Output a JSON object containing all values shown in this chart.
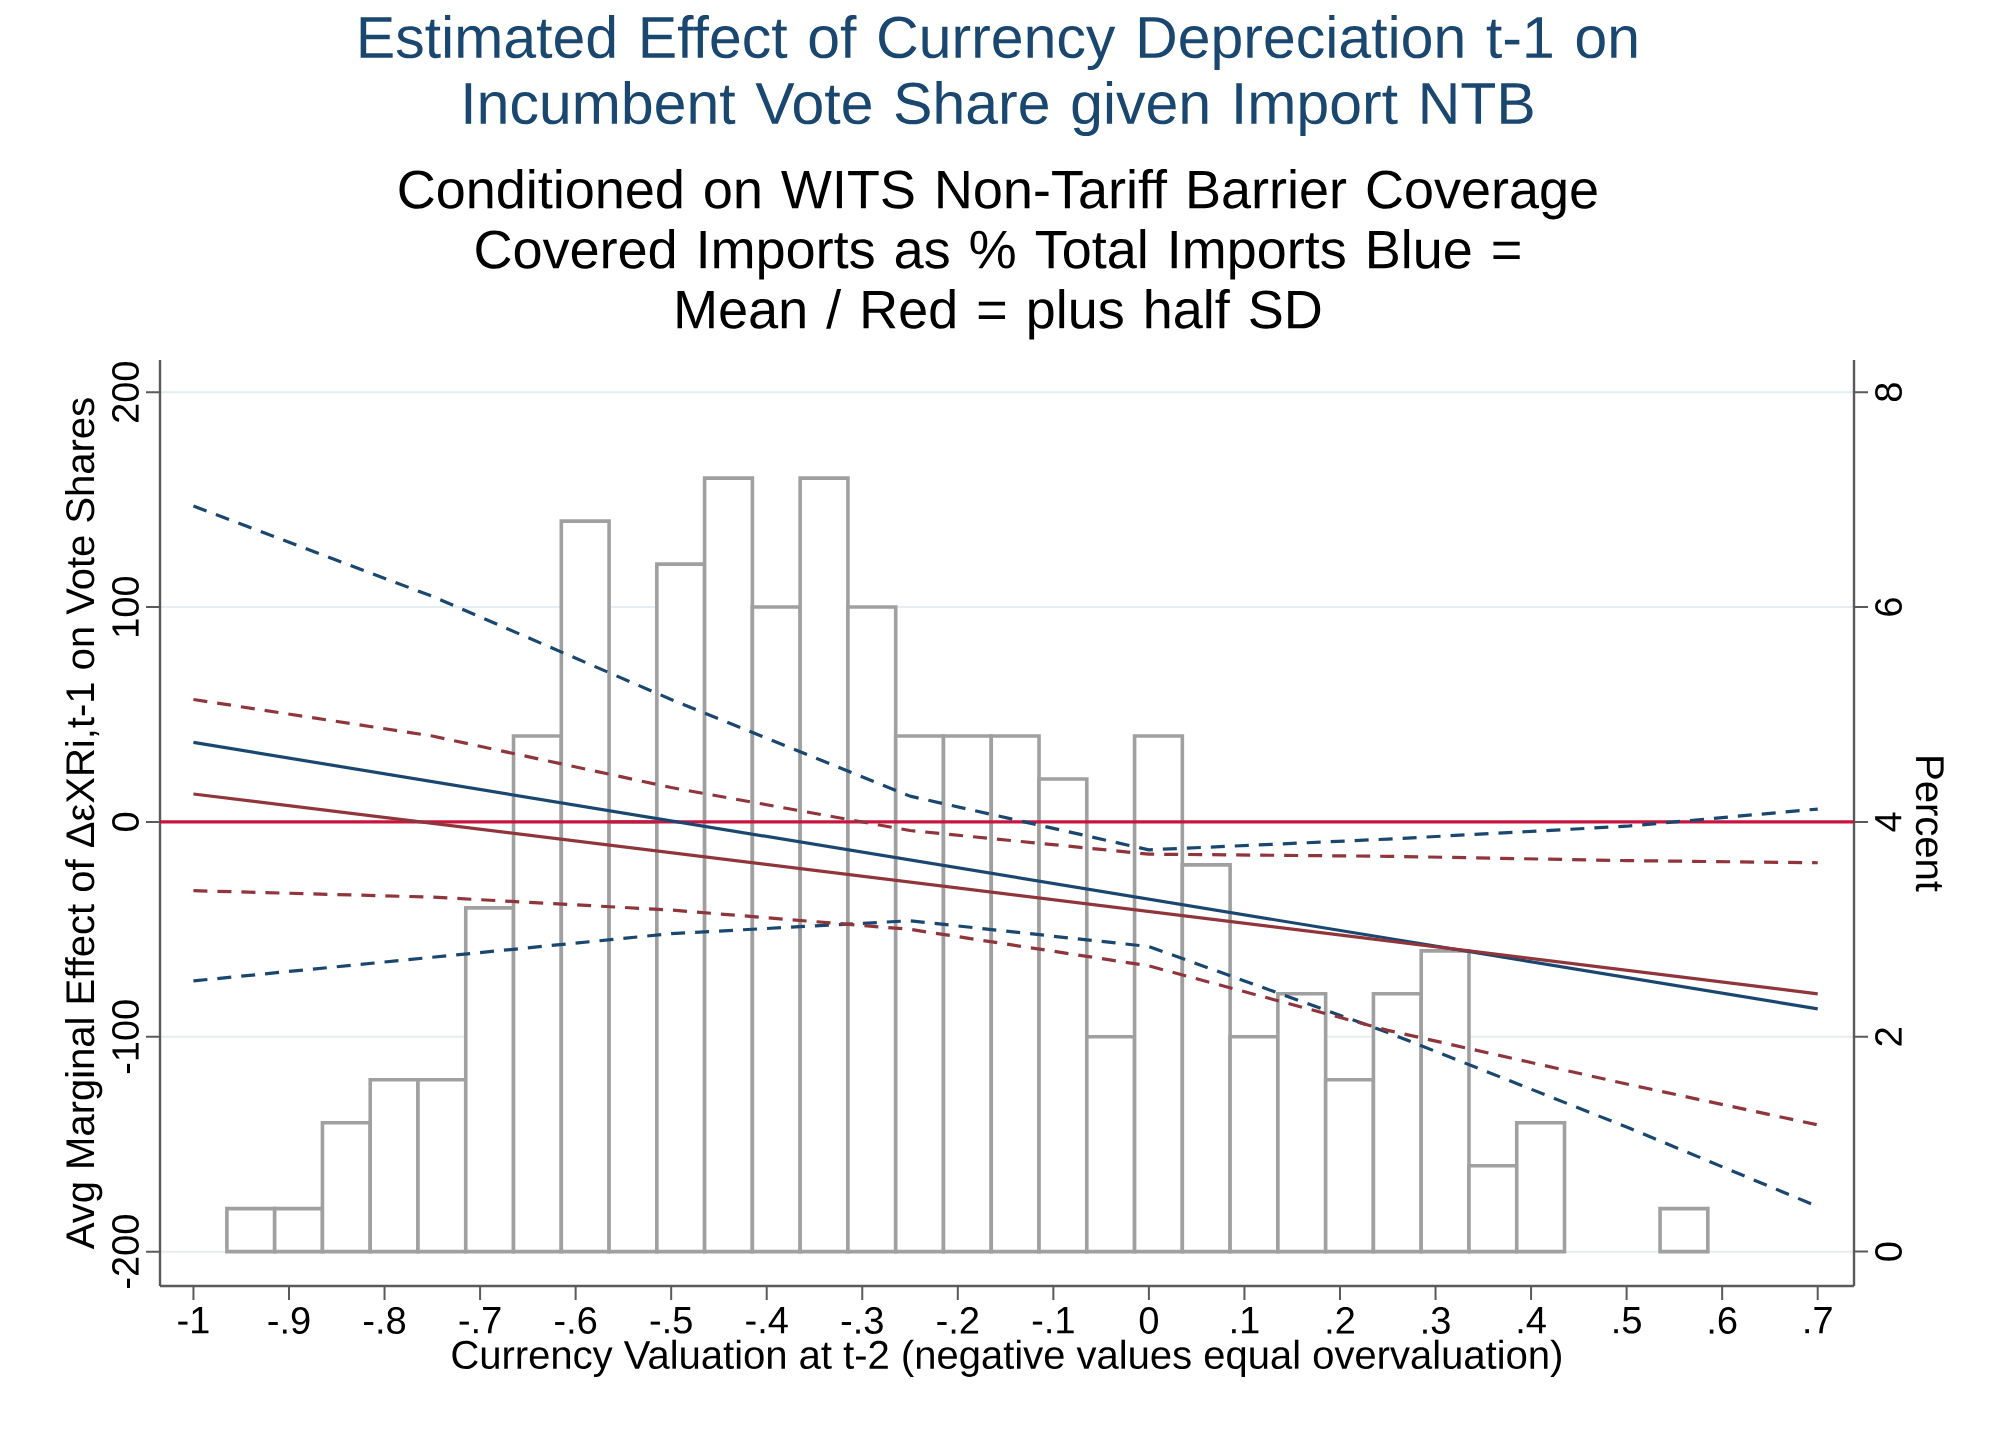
{
  "chart_data": {
    "type": "line",
    "title": "Estimated Effect of Currency Depreciation t-1 on Incumbent Vote Share given Import NTB",
    "subtitle": "Conditioned on WITS Non-Tariff Barrier Coverage Covered Imports as % Total Imports Blue = Mean / Red = plus half SD",
    "xlabel": "Currency Valuation at t-2 (negative values equal overvaluation)",
    "ylabel": "Avg Marginal Effect of ΔεXRi,t-1 on Vote Shares",
    "y2label": "Percent",
    "xlim": [
      -1.035,
      0.738
    ],
    "xticks": [
      -1,
      {
        "value": -0.9,
        "label": "-.9"
      },
      {
        "value": -0.8,
        "label": "-.8"
      },
      {
        "value": -0.7,
        "label": "-.7"
      },
      {
        "value": -0.6,
        "label": "-.6"
      },
      {
        "value": -0.5,
        "label": "-.5"
      },
      {
        "value": -0.4,
        "label": "-.4"
      },
      {
        "value": -0.3,
        "label": "-.3"
      },
      {
        "value": -0.2,
        "label": "-.2"
      },
      {
        "value": -0.1,
        "label": "-.1"
      },
      0,
      {
        "value": 0.1,
        "label": ".1"
      },
      {
        "value": 0.2,
        "label": ".2"
      },
      {
        "value": 0.3,
        "label": ".3"
      },
      {
        "value": 0.4,
        "label": ".4"
      },
      {
        "value": 0.5,
        "label": ".5"
      },
      {
        "value": 0.6,
        "label": ".6"
      },
      {
        "value": 0.7,
        "label": ".7"
      }
    ],
    "ylim": [
      -216,
      215
    ],
    "yticks": [
      -200,
      -100,
      0,
      100,
      200
    ],
    "y2lim": [
      -0.32,
      8.3
    ],
    "y2ticks": [
      0,
      2,
      4,
      6,
      8
    ],
    "grid": "y",
    "ref_lines": [
      {
        "axis": "y",
        "value": 0,
        "color": "#c8153f"
      }
    ],
    "series": [
      {
        "type": "histogram",
        "axis": "y2",
        "color": "#a0a0a0",
        "bins": [
          -0.965,
          -0.915,
          -0.865,
          -0.815,
          -0.765,
          -0.715,
          -0.665,
          -0.615,
          -0.565,
          -0.515,
          -0.465,
          -0.415,
          -0.365,
          -0.315,
          -0.265,
          -0.215,
          -0.165,
          -0.115,
          -0.065,
          -0.015,
          0.035,
          0.085,
          0.135,
          0.185,
          0.235,
          0.285,
          0.335,
          0.385,
          0.435,
          0.485,
          0.535,
          0.585
        ],
        "values": [
          0.4,
          0.4,
          1.2,
          1.6,
          1.6,
          3.2,
          4.8,
          6.8,
          4.0,
          6.4,
          7.2,
          6.0,
          7.2,
          6.0,
          4.8,
          4.8,
          4.8,
          4.4,
          2.0,
          4.8,
          3.6,
          2.0,
          2.4,
          1.6,
          2.4,
          2.8,
          0.8,
          1.2,
          0,
          0,
          0.4
        ]
      },
      {
        "color": "#1a476f",
        "line_style": "dashed",
        "x": [
          -1,
          -0.75,
          -0.5,
          -0.25,
          0,
          0.25,
          0.5,
          0.7
        ],
        "values": [
          147,
          105,
          57,
          12,
          -13,
          -8,
          -2,
          6
        ]
      },
      {
        "color": "#1a476f",
        "line_style": "dashed",
        "x": [
          -1,
          -0.75,
          -0.5,
          -0.25,
          0,
          0.25,
          0.5,
          0.7
        ],
        "values": [
          -74,
          -63,
          -52,
          -46,
          -58,
          -98,
          -142,
          -179
        ]
      },
      {
        "color": "#90353b",
        "line_style": "dashed",
        "x": [
          -1,
          -0.75,
          -0.5,
          -0.25,
          0,
          0.25,
          0.5,
          0.7
        ],
        "values": [
          57,
          40,
          16,
          -4,
          -15,
          -16,
          -18,
          -19
        ]
      },
      {
        "color": "#90353b",
        "line_style": "dashed",
        "x": [
          -1,
          -0.75,
          -0.5,
          -0.25,
          0,
          0.25,
          0.5,
          0.7
        ],
        "values": [
          -32,
          -35,
          -41,
          -50,
          -67,
          -97,
          -122,
          -141
        ]
      },
      {
        "color": "#1a476f",
        "line_style": "solid",
        "x": [
          -1,
          0.7
        ],
        "values": [
          37,
          -87
        ]
      },
      {
        "color": "#90353b",
        "line_style": "solid",
        "x": [
          -1,
          0.7
        ],
        "values": [
          13,
          -80
        ]
      }
    ]
  }
}
